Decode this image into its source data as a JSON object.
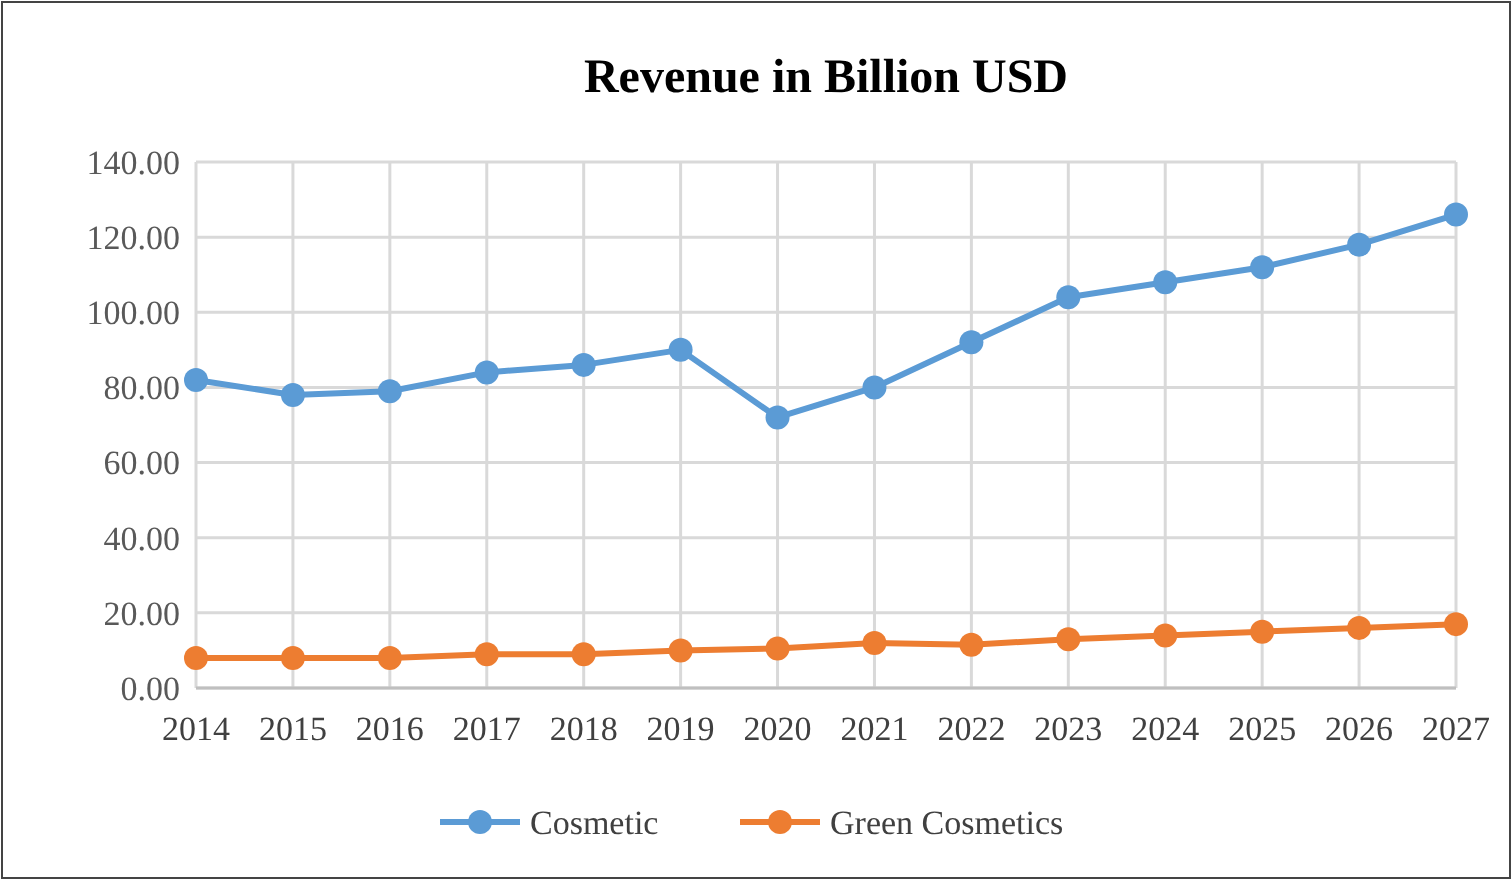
{
  "chart_data": {
    "type": "line",
    "title": "Revenue in Billion USD",
    "categories": [
      "2014",
      "2015",
      "2016",
      "2017",
      "2018",
      "2019",
      "2020",
      "2021",
      "2022",
      "2023",
      "2024",
      "2025",
      "2026",
      "2027"
    ],
    "series": [
      {
        "name": "Cosmetic",
        "color": "#5b9bd5",
        "values": [
          82,
          78,
          79,
          84,
          86,
          90,
          72,
          80,
          92,
          104,
          108,
          112,
          118,
          126
        ]
      },
      {
        "name": "Green Cosmetics",
        "color": "#ed7d31",
        "values": [
          8,
          8,
          8,
          9,
          9,
          10,
          10.5,
          12,
          11.5,
          13,
          14,
          15,
          16,
          17
        ]
      }
    ],
    "ylim": [
      0,
      140
    ],
    "yticks": [
      {
        "value": 0,
        "label": "0.00"
      },
      {
        "value": 20,
        "label": "20.00"
      },
      {
        "value": 40,
        "label": "40.00"
      },
      {
        "value": 60,
        "label": "60.00"
      },
      {
        "value": 80,
        "label": "80.00"
      },
      {
        "value": 100,
        "label": "100.00"
      },
      {
        "value": 120,
        "label": "120.00"
      },
      {
        "value": 140,
        "label": "140.00"
      }
    ],
    "grid": true,
    "legend": "bottom",
    "marker": "circle",
    "line_style": "solid"
  }
}
